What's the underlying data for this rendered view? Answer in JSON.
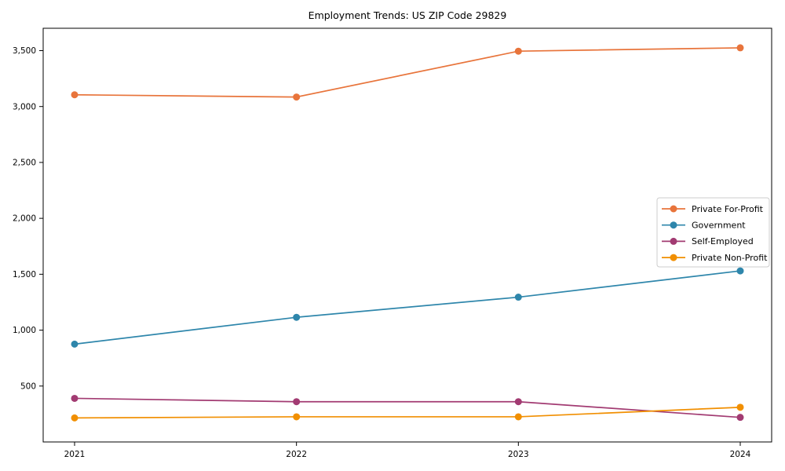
{
  "title": "Employment Trends: US ZIP Code 29829",
  "chart_data": {
    "type": "line",
    "title": "Employment Trends: US ZIP Code 29829",
    "xlabel": "",
    "ylabel": "",
    "categories": [
      "2021",
      "2022",
      "2023",
      "2024"
    ],
    "series": [
      {
        "name": "Private For-Profit",
        "color": "#E8743B",
        "values": [
          3105,
          3085,
          3495,
          3525
        ]
      },
      {
        "name": "Government",
        "color": "#2E86AB",
        "values": [
          875,
          1115,
          1295,
          1530
        ]
      },
      {
        "name": "Self-Employed",
        "color": "#A23B72",
        "values": [
          390,
          360,
          360,
          220
        ]
      },
      {
        "name": "Private Non-Profit",
        "color": "#F18F01",
        "values": [
          215,
          225,
          225,
          310
        ]
      }
    ],
    "ylim": [
      0,
      3700
    ],
    "yticks": [
      500,
      1000,
      1500,
      2000,
      2500,
      3000,
      3500
    ],
    "ytick_labels": [
      "500",
      "1,000",
      "1,500",
      "2,000",
      "2,500",
      "3,000",
      "3,500"
    ],
    "grid": false,
    "legend_position": "center right",
    "axis_color": "#000000",
    "legend_border_color": "#cccccc"
  }
}
